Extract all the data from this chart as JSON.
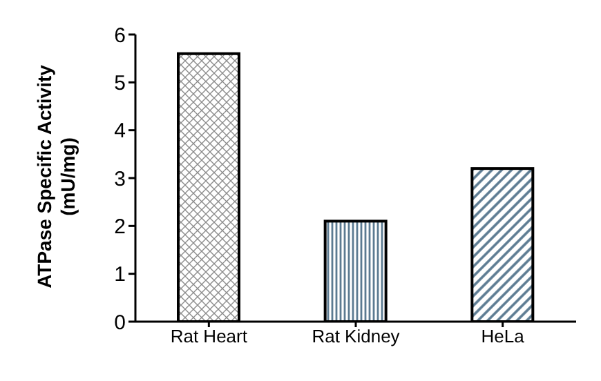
{
  "chart_data": {
    "type": "bar",
    "ylabel": "ATPase Specific Activity (mU/mg)",
    "categories": [
      "Rat Heart",
      "Rat Kidney",
      "HeLa"
    ],
    "values": [
      5.6,
      2.1,
      3.2
    ],
    "colors": [
      "#8c8c8c",
      "#5b7a91",
      "#5b7a91"
    ],
    "ylim": [
      0,
      6
    ],
    "yticks": [
      0,
      1,
      2,
      3,
      4,
      5,
      6
    ],
    "grid": false
  }
}
